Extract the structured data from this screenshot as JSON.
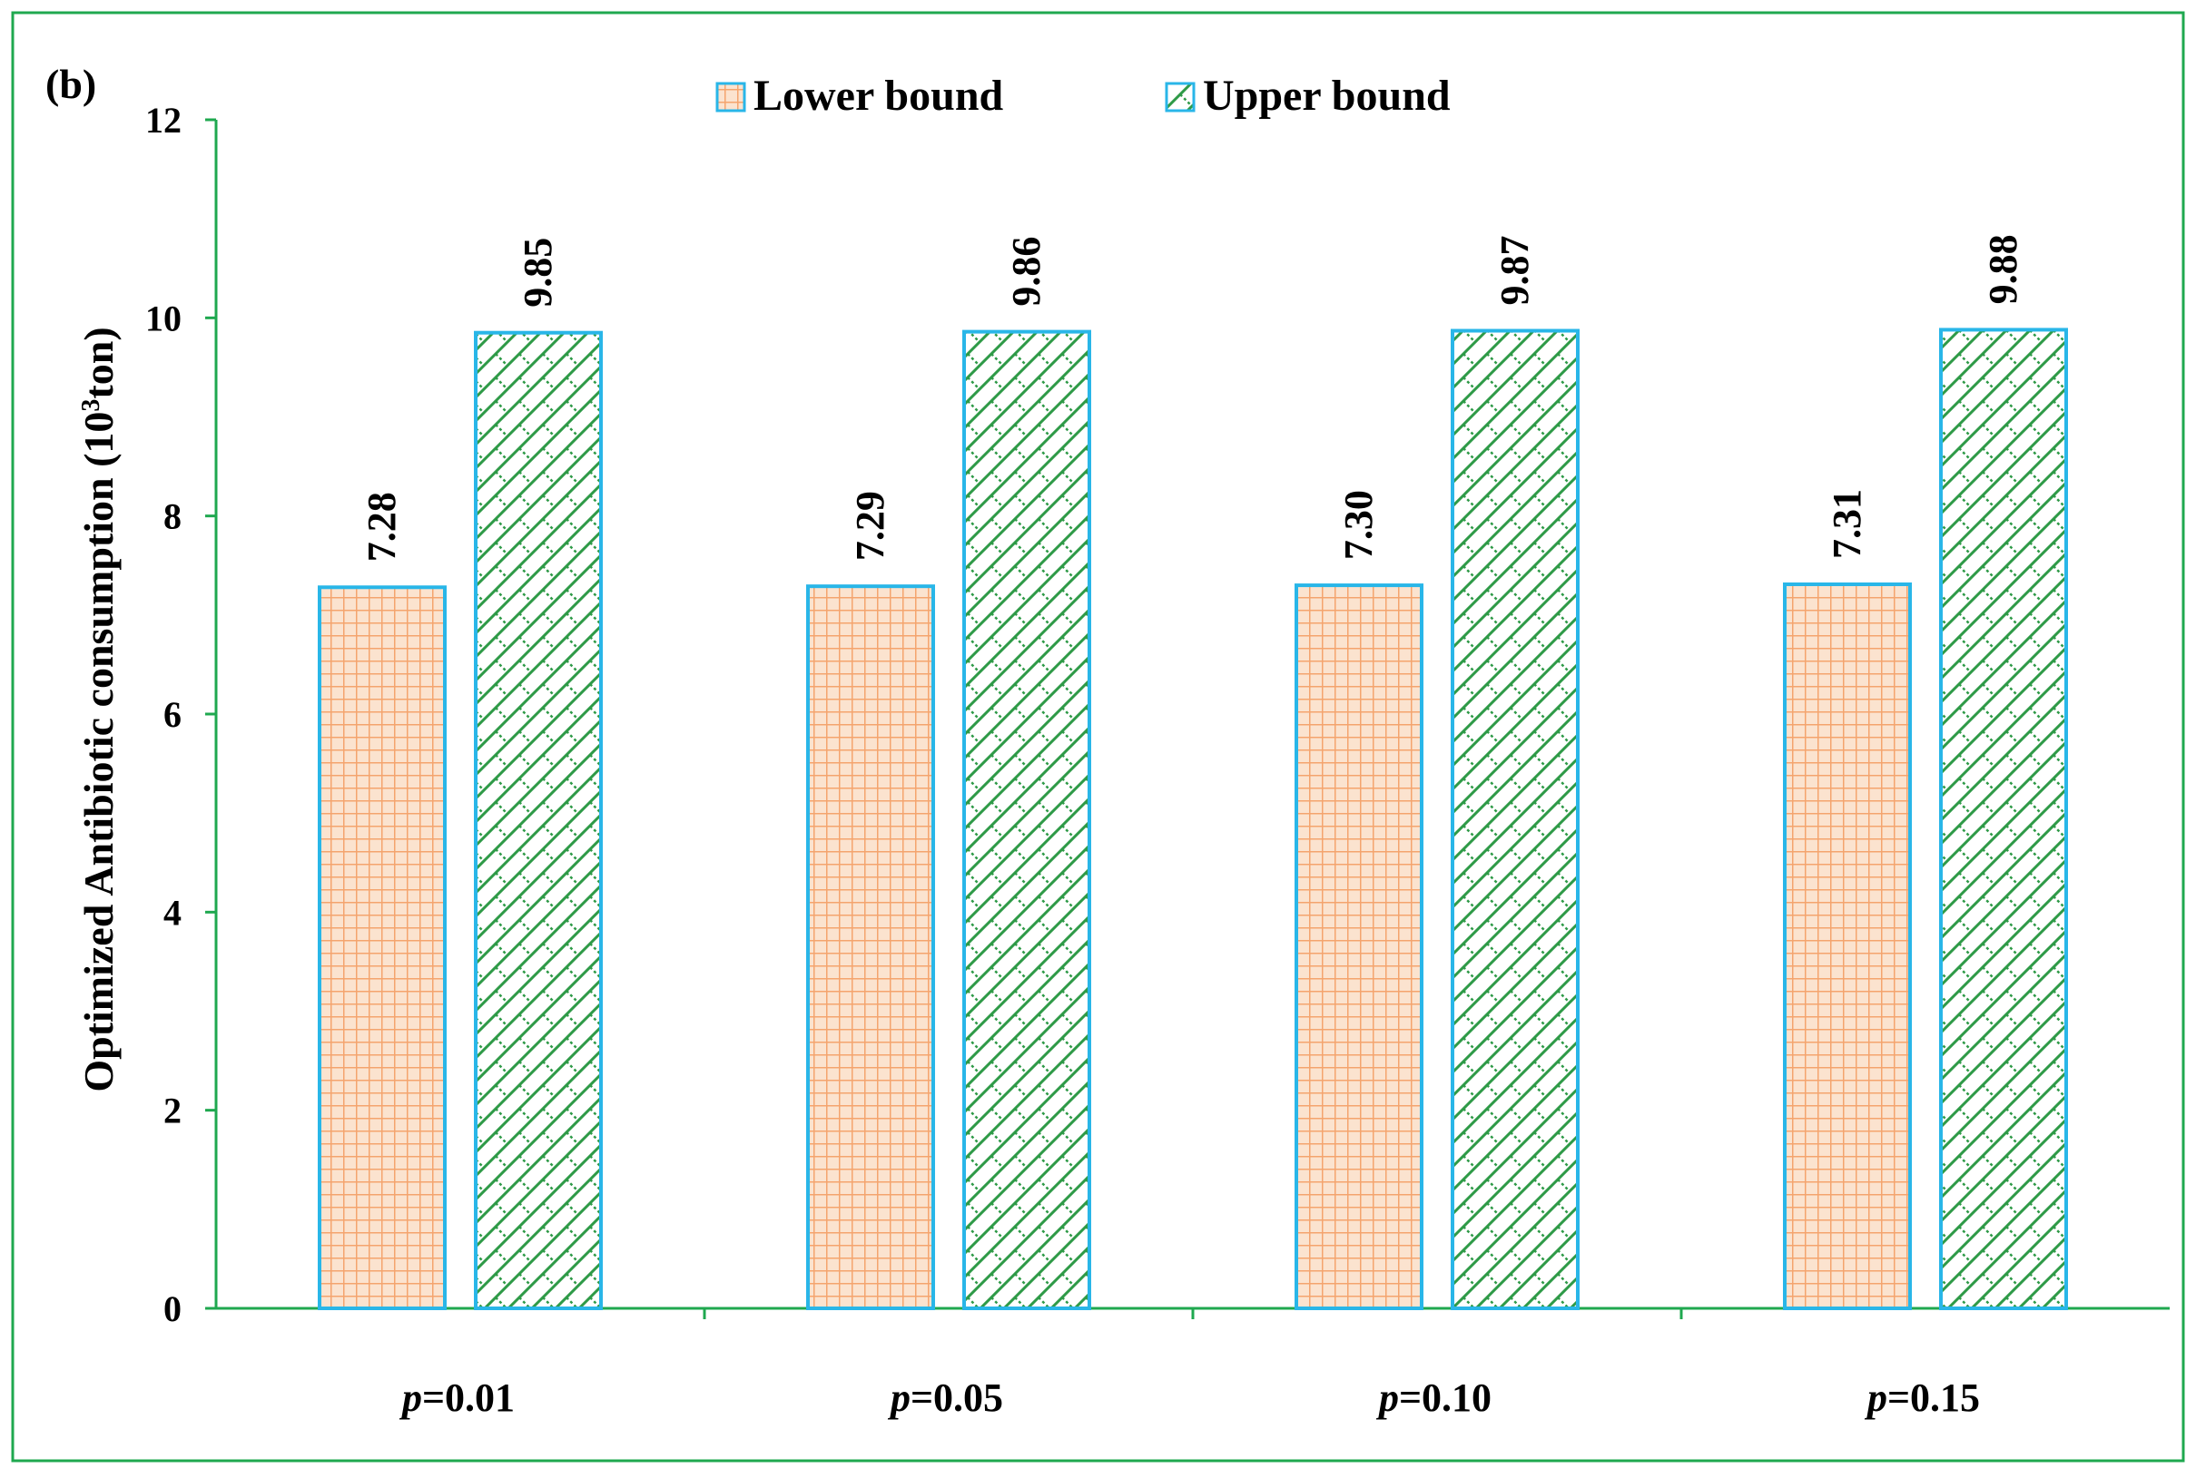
{
  "chart_data": {
    "type": "bar",
    "panel_label": "(b)",
    "ylabel": "Optimized   Antibiotic consumption (10",
    "ylabel_sup": "3",
    "ylabel_end": "ton)",
    "categories": [
      {
        "var": "p",
        "rest": "=0.01"
      },
      {
        "var": "p",
        "rest": "=0.05"
      },
      {
        "var": "p",
        "rest": "=0.10"
      },
      {
        "var": "p",
        "rest": "=0.15"
      }
    ],
    "series": [
      {
        "name": "Lower bound",
        "values": [
          7.28,
          7.29,
          7.3,
          7.31
        ],
        "labels": [
          "7.28",
          "7.29",
          "7.30",
          "7.31"
        ]
      },
      {
        "name": "Upper bound",
        "values": [
          9.85,
          9.86,
          9.87,
          9.88
        ],
        "labels": [
          "9.85",
          "9.86",
          "9.87",
          "9.88"
        ]
      }
    ],
    "ylim": [
      0,
      12
    ],
    "yticks": [
      0,
      2,
      4,
      6,
      8,
      10,
      12
    ],
    "grid": false,
    "legend_position": "top-center",
    "colors": {
      "frame": "#1fa84f",
      "axis": "#1fa84f",
      "bar_border": "#29b6e8",
      "lower_fill": "#fbe3cf",
      "lower_pattern": "#f4a46e",
      "upper_fill": "#ffffff",
      "upper_pattern": "#2e9a47"
    }
  }
}
